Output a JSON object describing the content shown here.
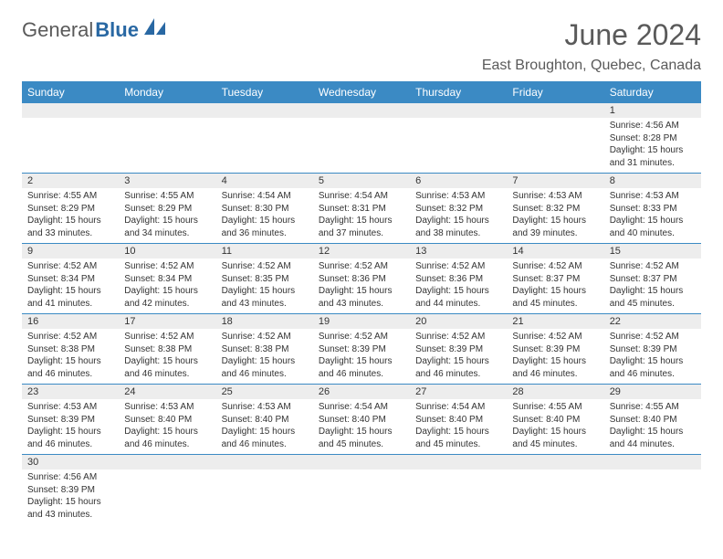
{
  "brand": {
    "part1": "General",
    "part2": "Blue"
  },
  "title": "June 2024",
  "location": "East Broughton, Quebec, Canada",
  "colors": {
    "header_bg": "#3b8ac4",
    "header_text": "#ffffff",
    "daynum_bg": "#ededed",
    "text": "#333333",
    "border": "#3b8ac4",
    "title_color": "#5a5a5a"
  },
  "day_names": [
    "Sunday",
    "Monday",
    "Tuesday",
    "Wednesday",
    "Thursday",
    "Friday",
    "Saturday"
  ],
  "weeks": [
    [
      {
        "n": "",
        "sunrise": "",
        "sunset": "",
        "day_h": "",
        "day_m": ""
      },
      {
        "n": "",
        "sunrise": "",
        "sunset": "",
        "day_h": "",
        "day_m": ""
      },
      {
        "n": "",
        "sunrise": "",
        "sunset": "",
        "day_h": "",
        "day_m": ""
      },
      {
        "n": "",
        "sunrise": "",
        "sunset": "",
        "day_h": "",
        "day_m": ""
      },
      {
        "n": "",
        "sunrise": "",
        "sunset": "",
        "day_h": "",
        "day_m": ""
      },
      {
        "n": "",
        "sunrise": "",
        "sunset": "",
        "day_h": "",
        "day_m": ""
      },
      {
        "n": "1",
        "sunrise": "4:56 AM",
        "sunset": "8:28 PM",
        "day_h": "15",
        "day_m": "31"
      }
    ],
    [
      {
        "n": "2",
        "sunrise": "4:55 AM",
        "sunset": "8:29 PM",
        "day_h": "15",
        "day_m": "33"
      },
      {
        "n": "3",
        "sunrise": "4:55 AM",
        "sunset": "8:29 PM",
        "day_h": "15",
        "day_m": "34"
      },
      {
        "n": "4",
        "sunrise": "4:54 AM",
        "sunset": "8:30 PM",
        "day_h": "15",
        "day_m": "36"
      },
      {
        "n": "5",
        "sunrise": "4:54 AM",
        "sunset": "8:31 PM",
        "day_h": "15",
        "day_m": "37"
      },
      {
        "n": "6",
        "sunrise": "4:53 AM",
        "sunset": "8:32 PM",
        "day_h": "15",
        "day_m": "38"
      },
      {
        "n": "7",
        "sunrise": "4:53 AM",
        "sunset": "8:32 PM",
        "day_h": "15",
        "day_m": "39"
      },
      {
        "n": "8",
        "sunrise": "4:53 AM",
        "sunset": "8:33 PM",
        "day_h": "15",
        "day_m": "40"
      }
    ],
    [
      {
        "n": "9",
        "sunrise": "4:52 AM",
        "sunset": "8:34 PM",
        "day_h": "15",
        "day_m": "41"
      },
      {
        "n": "10",
        "sunrise": "4:52 AM",
        "sunset": "8:34 PM",
        "day_h": "15",
        "day_m": "42"
      },
      {
        "n": "11",
        "sunrise": "4:52 AM",
        "sunset": "8:35 PM",
        "day_h": "15",
        "day_m": "43"
      },
      {
        "n": "12",
        "sunrise": "4:52 AM",
        "sunset": "8:36 PM",
        "day_h": "15",
        "day_m": "43"
      },
      {
        "n": "13",
        "sunrise": "4:52 AM",
        "sunset": "8:36 PM",
        "day_h": "15",
        "day_m": "44"
      },
      {
        "n": "14",
        "sunrise": "4:52 AM",
        "sunset": "8:37 PM",
        "day_h": "15",
        "day_m": "45"
      },
      {
        "n": "15",
        "sunrise": "4:52 AM",
        "sunset": "8:37 PM",
        "day_h": "15",
        "day_m": "45"
      }
    ],
    [
      {
        "n": "16",
        "sunrise": "4:52 AM",
        "sunset": "8:38 PM",
        "day_h": "15",
        "day_m": "46"
      },
      {
        "n": "17",
        "sunrise": "4:52 AM",
        "sunset": "8:38 PM",
        "day_h": "15",
        "day_m": "46"
      },
      {
        "n": "18",
        "sunrise": "4:52 AM",
        "sunset": "8:38 PM",
        "day_h": "15",
        "day_m": "46"
      },
      {
        "n": "19",
        "sunrise": "4:52 AM",
        "sunset": "8:39 PM",
        "day_h": "15",
        "day_m": "46"
      },
      {
        "n": "20",
        "sunrise": "4:52 AM",
        "sunset": "8:39 PM",
        "day_h": "15",
        "day_m": "46"
      },
      {
        "n": "21",
        "sunrise": "4:52 AM",
        "sunset": "8:39 PM",
        "day_h": "15",
        "day_m": "46"
      },
      {
        "n": "22",
        "sunrise": "4:52 AM",
        "sunset": "8:39 PM",
        "day_h": "15",
        "day_m": "46"
      }
    ],
    [
      {
        "n": "23",
        "sunrise": "4:53 AM",
        "sunset": "8:39 PM",
        "day_h": "15",
        "day_m": "46"
      },
      {
        "n": "24",
        "sunrise": "4:53 AM",
        "sunset": "8:40 PM",
        "day_h": "15",
        "day_m": "46"
      },
      {
        "n": "25",
        "sunrise": "4:53 AM",
        "sunset": "8:40 PM",
        "day_h": "15",
        "day_m": "46"
      },
      {
        "n": "26",
        "sunrise": "4:54 AM",
        "sunset": "8:40 PM",
        "day_h": "15",
        "day_m": "45"
      },
      {
        "n": "27",
        "sunrise": "4:54 AM",
        "sunset": "8:40 PM",
        "day_h": "15",
        "day_m": "45"
      },
      {
        "n": "28",
        "sunrise": "4:55 AM",
        "sunset": "8:40 PM",
        "day_h": "15",
        "day_m": "45"
      },
      {
        "n": "29",
        "sunrise": "4:55 AM",
        "sunset": "8:40 PM",
        "day_h": "15",
        "day_m": "44"
      }
    ],
    [
      {
        "n": "30",
        "sunrise": "4:56 AM",
        "sunset": "8:39 PM",
        "day_h": "15",
        "day_m": "43"
      },
      {
        "n": "",
        "sunrise": "",
        "sunset": "",
        "day_h": "",
        "day_m": ""
      },
      {
        "n": "",
        "sunrise": "",
        "sunset": "",
        "day_h": "",
        "day_m": ""
      },
      {
        "n": "",
        "sunrise": "",
        "sunset": "",
        "day_h": "",
        "day_m": ""
      },
      {
        "n": "",
        "sunrise": "",
        "sunset": "",
        "day_h": "",
        "day_m": ""
      },
      {
        "n": "",
        "sunrise": "",
        "sunset": "",
        "day_h": "",
        "day_m": ""
      },
      {
        "n": "",
        "sunrise": "",
        "sunset": "",
        "day_h": "",
        "day_m": ""
      }
    ]
  ]
}
